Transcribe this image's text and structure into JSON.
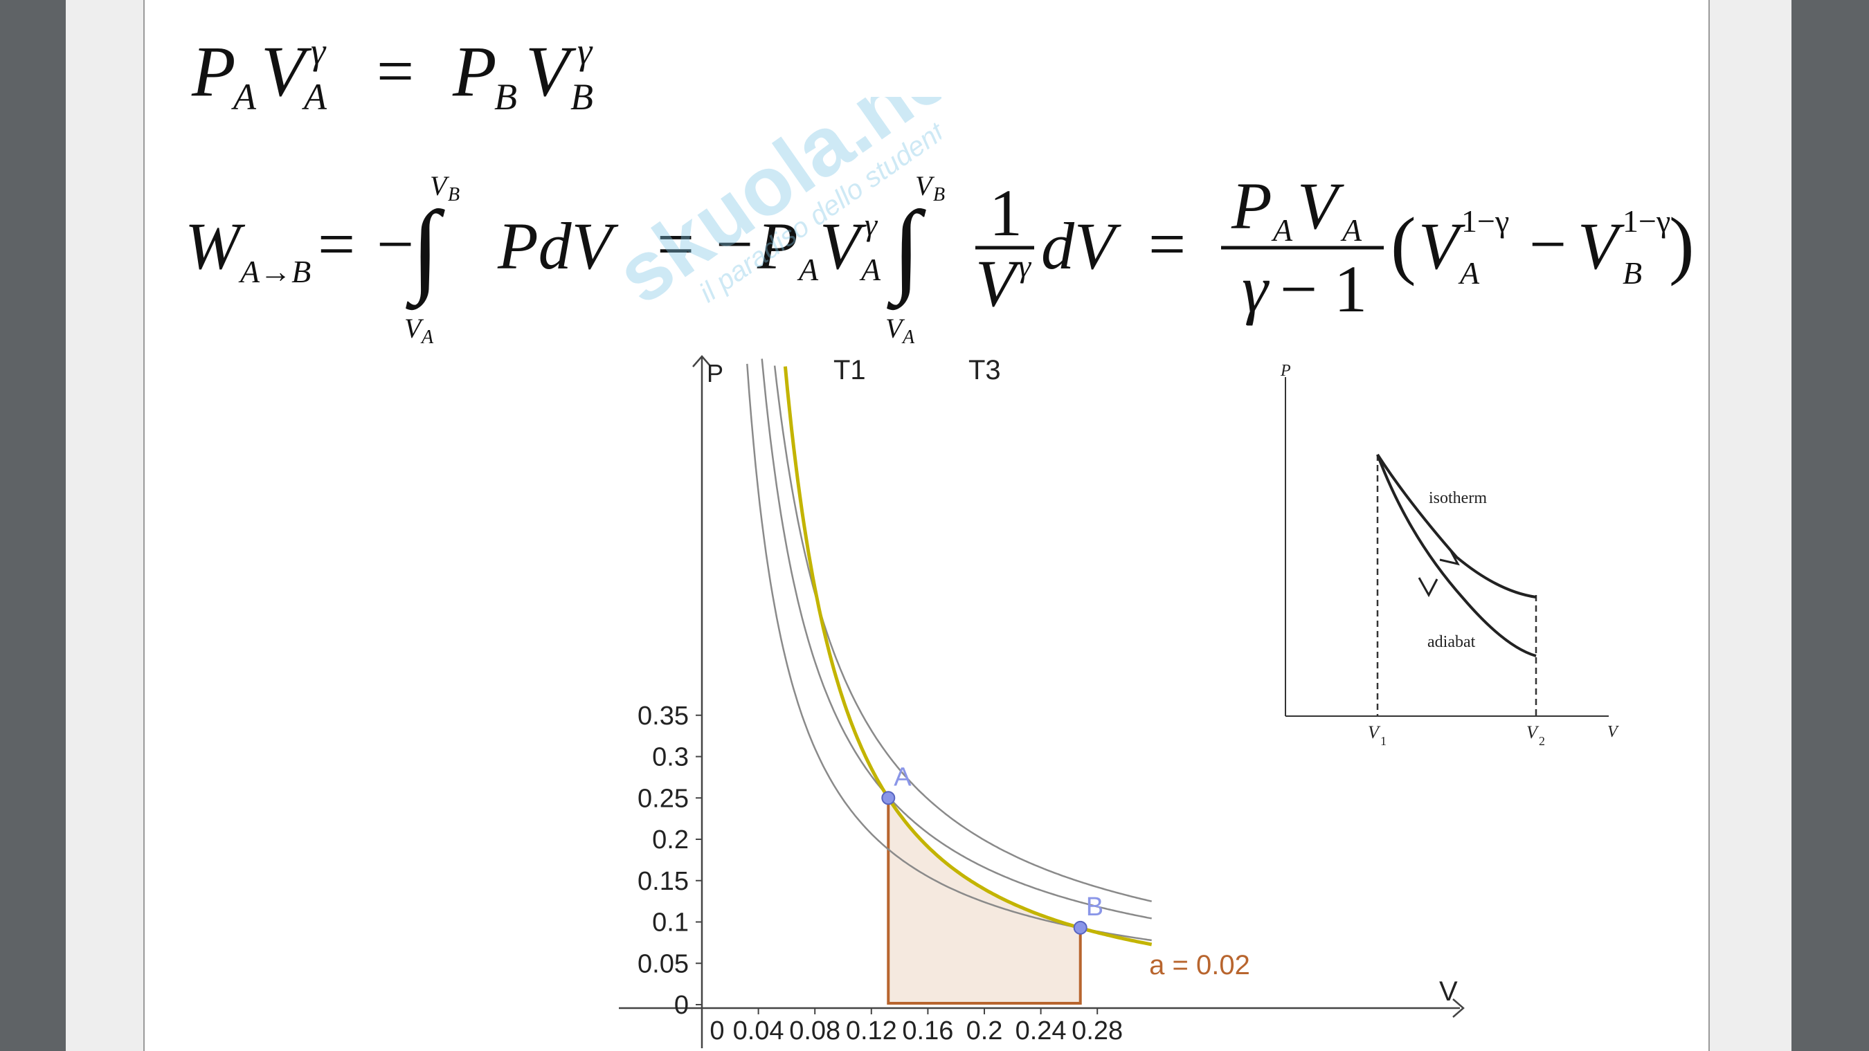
{
  "equations": {
    "adiabat": {
      "lhs": "P",
      "sub_a": "A",
      "v": "V",
      "gamma": "γ",
      "eq": "=",
      "sub_b": "B"
    },
    "work": {
      "w": "W",
      "w_sub": "A→B",
      "eq": "=",
      "minus": "−",
      "integral": "∫",
      "upper": "V",
      "upper_sub": "B",
      "lower": "V",
      "lower_sub": "A",
      "integrand": "PdV",
      "coef": "P",
      "coef_sub": "A",
      "coef_v": "V",
      "gamma": "γ",
      "one": "1",
      "frac_den": "V",
      "dv": "dV",
      "frac_num": "P",
      "frac_num_sub": "A",
      "frac_num_v": "V",
      "frac_gamma": "γ",
      "frac_minus_one": "− 1",
      "paren_open": "(",
      "paren_close": ")",
      "exp": "1−γ"
    }
  },
  "watermark": {
    "brand": "skuola.net",
    "tagline": "il paradiso dello studente"
  },
  "chart_data": [
    {
      "type": "line",
      "xlabel": "V",
      "ylabel": "P",
      "xlim": [
        0,
        0.28
      ],
      "ylim": [
        0,
        0.35
      ],
      "x_ticks": [
        "0",
        "0.04",
        "0.08",
        "0.12",
        "0.16",
        "0.2",
        "0.24",
        "0.28"
      ],
      "y_ticks": [
        "0",
        "0.05",
        "0.1",
        "0.15",
        "0.2",
        "0.25",
        "0.3",
        "0.35"
      ],
      "series": [
        {
          "name": "T1",
          "kind": "isotherm",
          "k": 0.0248
        },
        {
          "name": "",
          "kind": "isotherm",
          "k": 0.0332
        },
        {
          "name": "T3",
          "kind": "isotherm",
          "k": 0.0398
        },
        {
          "name": "",
          "kind": "adiabat",
          "pa": 0.25,
          "va": 0.132,
          "gamma": 1.4
        }
      ],
      "points": [
        {
          "label": "A",
          "x": 0.132,
          "y": 0.25
        },
        {
          "label": "B",
          "x": 0.268,
          "y": 0.093
        }
      ],
      "shaded_area_label": "a = 0.02",
      "colors": {
        "isotherm": "#8a8a8a",
        "adiabat": "#c3b400",
        "area_fill": "#f5e9df",
        "area_edge": "#b8652e",
        "point": "#8a96e8"
      }
    },
    {
      "type": "line",
      "xlabel": "V",
      "ylabel": "P",
      "x_ticks": [
        "V",
        "V"
      ],
      "x_tick_subs": [
        "1",
        "2"
      ],
      "series": [
        {
          "name": "isotherm",
          "kind": "isotherm"
        },
        {
          "name": "adiabat",
          "kind": "adiabat"
        }
      ]
    }
  ]
}
